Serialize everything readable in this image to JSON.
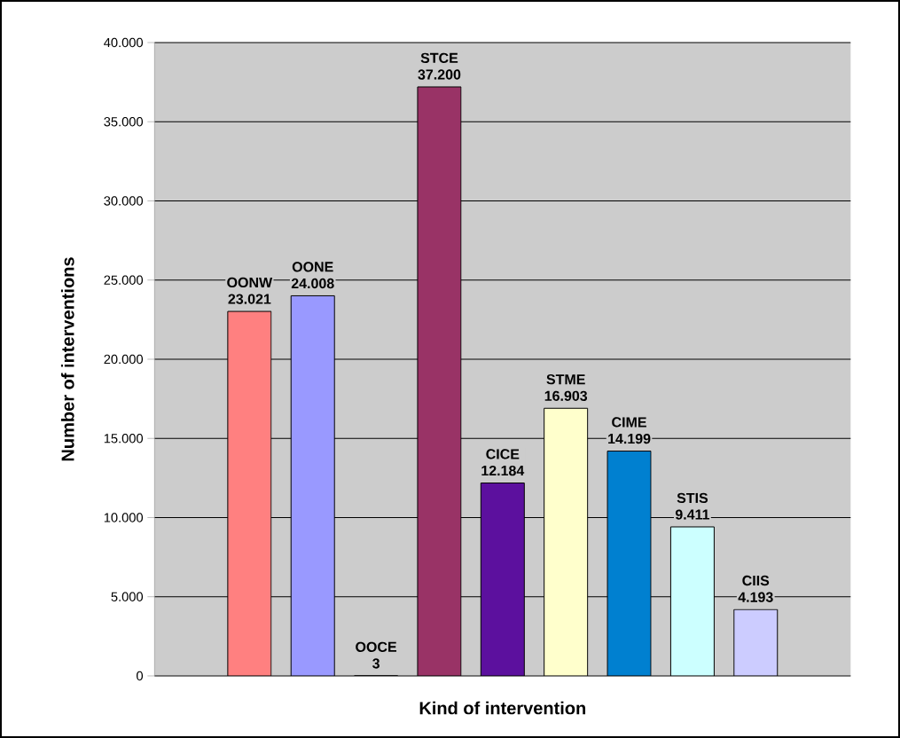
{
  "chart_data": {
    "type": "bar",
    "xlabel": "Kind of intervention",
    "ylabel": "Number of interventions",
    "categories": [
      null,
      null,
      null,
      null,
      null,
      null,
      null,
      null,
      null,
      null,
      null
    ],
    "annotations": [
      null,
      "OONW",
      "OONE",
      "OOCE",
      "STCE",
      "CICE",
      "STME",
      "CIME",
      "STIS",
      "CIIS",
      null
    ],
    "values": [
      null,
      23021,
      24008,
      3,
      37200,
      12184,
      16903,
      14199,
      9411,
      4193,
      null
    ],
    "value_labels": [
      null,
      "23.021",
      "24.008",
      "3",
      "37.200",
      "12.184",
      "16.903",
      "14.199",
      "9.411",
      "4.193",
      null
    ],
    "colors": [
      null,
      "#ff8080",
      "#9999ff",
      "#000000",
      "#993366",
      "#5c109e",
      "#ffffcc",
      "#0080d0",
      "#ccffff",
      "#ccccff",
      null
    ],
    "ylim": [
      0,
      40000
    ],
    "yticks": [
      {
        "value": 0,
        "label": "0"
      },
      {
        "value": 5000,
        "label": "5.000"
      },
      {
        "value": 10000,
        "label": "10.000"
      },
      {
        "value": 15000,
        "label": "15.000"
      },
      {
        "value": 20000,
        "label": "20.000"
      },
      {
        "value": 25000,
        "label": "25.000"
      },
      {
        "value": 30000,
        "label": "30.000"
      },
      {
        "value": 35000,
        "label": "35.000"
      },
      {
        "value": 40000,
        "label": "40.000"
      }
    ],
    "grid": "y",
    "tick_labels": "y"
  }
}
